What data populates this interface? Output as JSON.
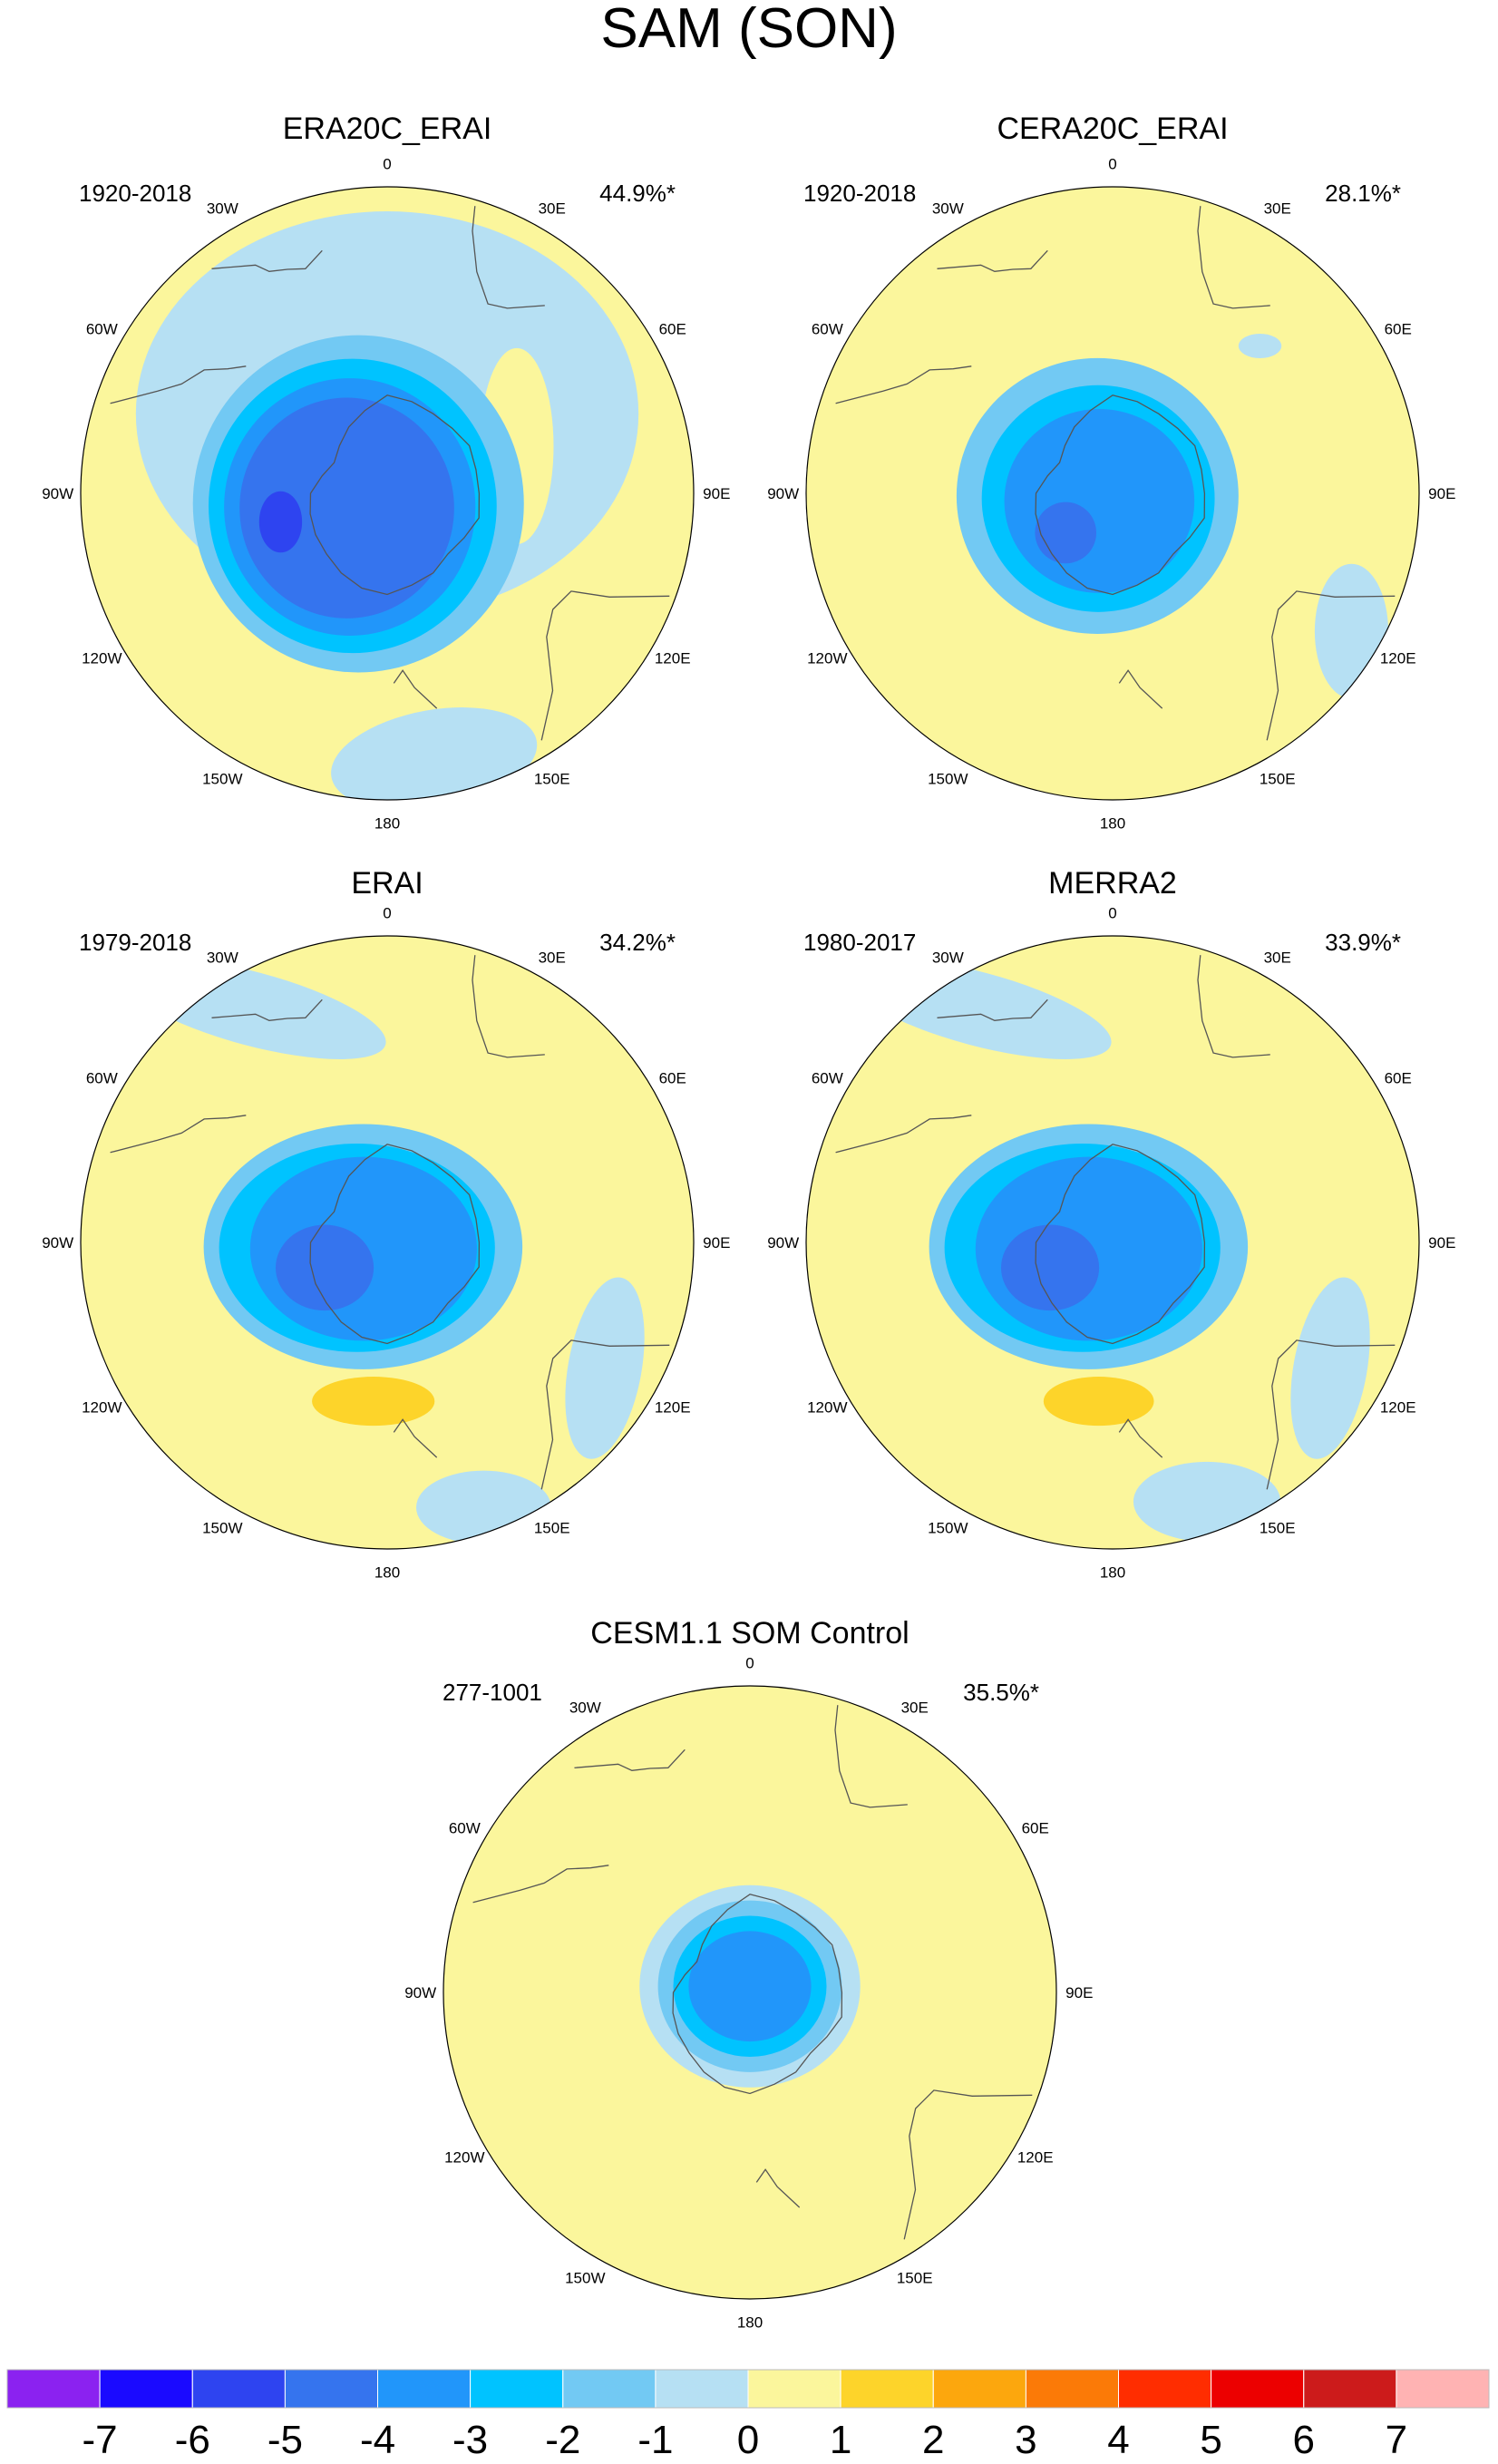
{
  "title": "SAM (SON)",
  "longitude_labels": [
    "0",
    "30E",
    "60E",
    "90E",
    "120E",
    "150E",
    "180",
    "150W",
    "120W",
    "90W",
    "60W",
    "30W"
  ],
  "panels": [
    {
      "id": "era20c",
      "title": "ERA20C_ERAI",
      "period": "1920-2018",
      "variance": "44.9%*",
      "blobs": [
        {
          "lon": 0,
          "r": 0.26,
          "rx": 0.82,
          "ry": 0.66,
          "rot": 0,
          "level": -1
        },
        {
          "lon": 45,
          "r": 0.62,
          "rx": 0.1,
          "ry": 0.18,
          "rot": 20,
          "level": -1
        },
        {
          "lon": 170,
          "r": 0.88,
          "rx": 0.34,
          "ry": 0.16,
          "rot": -10,
          "level": -1
        },
        {
          "lon": 70,
          "r": 0.45,
          "rx": 0.12,
          "ry": 0.32,
          "rot": 0,
          "level": 1
        },
        {
          "lon": 200,
          "r": 0.6,
          "rx": 0.22,
          "ry": 0.07,
          "rot": 0,
          "level": 1
        },
        {
          "lon": 250,
          "r": 0.1,
          "rx": 0.54,
          "ry": 0.55,
          "rot": 0,
          "level": -2
        },
        {
          "lon": 250,
          "r": 0.12,
          "rx": 0.47,
          "ry": 0.48,
          "rot": 0,
          "level": -3
        },
        {
          "lon": 250,
          "r": 0.13,
          "rx": 0.41,
          "ry": 0.42,
          "rot": 0,
          "level": -4
        },
        {
          "lon": 250,
          "r": 0.14,
          "rx": 0.35,
          "ry": 0.36,
          "rot": 0,
          "level": -5
        },
        {
          "lon": 255,
          "r": 0.36,
          "rx": 0.07,
          "ry": 0.1,
          "rot": 0,
          "level": -6
        }
      ]
    },
    {
      "id": "cera20c",
      "title": "CERA20C_ERAI",
      "period": "1920-2018",
      "variance": "28.1%*",
      "blobs": [
        {
          "lon": 120,
          "r": 0.9,
          "rx": 0.12,
          "ry": 0.22,
          "rot": 0,
          "level": -1
        },
        {
          "lon": 45,
          "r": 0.68,
          "rx": 0.07,
          "ry": 0.04,
          "rot": 0,
          "level": -1
        },
        {
          "lon": 90,
          "r": 0.55,
          "rx": 0.12,
          "ry": 0.38,
          "rot": 25,
          "level": 1
        },
        {
          "lon": 160,
          "r": 0.58,
          "rx": 0.38,
          "ry": 0.12,
          "rot": -18,
          "level": 1
        },
        {
          "lon": 260,
          "r": 0.05,
          "rx": 0.46,
          "ry": 0.45,
          "rot": 0,
          "level": -2
        },
        {
          "lon": 250,
          "r": 0.05,
          "rx": 0.38,
          "ry": 0.37,
          "rot": 0,
          "level": -3
        },
        {
          "lon": 240,
          "r": 0.05,
          "rx": 0.31,
          "ry": 0.3,
          "rot": 0,
          "level": -4
        },
        {
          "lon": 230,
          "r": 0.2,
          "rx": 0.1,
          "ry": 0.1,
          "rot": 0,
          "level": -5
        }
      ]
    },
    {
      "id": "erai",
      "title": "ERAI",
      "period": "1979-2018",
      "variance": "34.2%*",
      "blobs": [
        {
          "lon": 330,
          "r": 0.88,
          "rx": 0.45,
          "ry": 0.12,
          "rot": 15,
          "level": -1
        },
        {
          "lon": 120,
          "r": 0.82,
          "rx": 0.12,
          "ry": 0.3,
          "rot": 10,
          "level": -1
        },
        {
          "lon": 160,
          "r": 0.92,
          "rx": 0.22,
          "ry": 0.12,
          "rot": 0,
          "level": -1
        },
        {
          "lon": 300,
          "r": 0.55,
          "rx": 0.09,
          "ry": 0.06,
          "rot": 0,
          "level": 1
        },
        {
          "lon": 90,
          "r": 0.48,
          "rx": 0.12,
          "ry": 0.4,
          "rot": 25,
          "level": 1
        },
        {
          "lon": 170,
          "r": 0.52,
          "rx": 0.4,
          "ry": 0.15,
          "rot": -18,
          "level": 1
        },
        {
          "lon": 185,
          "r": 0.52,
          "rx": 0.2,
          "ry": 0.08,
          "rot": 0,
          "level": 2
        },
        {
          "lon": 260,
          "r": 0.08,
          "rx": 0.52,
          "ry": 0.4,
          "rot": 0,
          "level": -2
        },
        {
          "lon": 260,
          "r": 0.1,
          "rx": 0.45,
          "ry": 0.34,
          "rot": 0,
          "level": -3
        },
        {
          "lon": 255,
          "r": 0.08,
          "rx": 0.37,
          "ry": 0.3,
          "rot": 0,
          "level": -4
        },
        {
          "lon": 248,
          "r": 0.22,
          "rx": 0.16,
          "ry": 0.14,
          "rot": 0,
          "level": -5
        }
      ]
    },
    {
      "id": "merra2",
      "title": "MERRA2",
      "period": "1980-2017",
      "variance": "33.9%*",
      "blobs": [
        {
          "lon": 330,
          "r": 0.88,
          "rx": 0.45,
          "ry": 0.12,
          "rot": 15,
          "level": -1
        },
        {
          "lon": 120,
          "r": 0.82,
          "rx": 0.12,
          "ry": 0.3,
          "rot": 10,
          "level": -1
        },
        {
          "lon": 160,
          "r": 0.9,
          "rx": 0.24,
          "ry": 0.13,
          "rot": 0,
          "level": -1
        },
        {
          "lon": 300,
          "r": 0.55,
          "rx": 0.1,
          "ry": 0.07,
          "rot": 0,
          "level": 1
        },
        {
          "lon": 90,
          "r": 0.48,
          "rx": 0.12,
          "ry": 0.4,
          "rot": 25,
          "level": 1
        },
        {
          "lon": 170,
          "r": 0.52,
          "rx": 0.4,
          "ry": 0.15,
          "rot": -18,
          "level": 1
        },
        {
          "lon": 185,
          "r": 0.52,
          "rx": 0.18,
          "ry": 0.08,
          "rot": 0,
          "level": 2
        },
        {
          "lon": 260,
          "r": 0.08,
          "rx": 0.52,
          "ry": 0.4,
          "rot": 0,
          "level": -2
        },
        {
          "lon": 260,
          "r": 0.1,
          "rx": 0.45,
          "ry": 0.34,
          "rot": 0,
          "level": -3
        },
        {
          "lon": 255,
          "r": 0.08,
          "rx": 0.37,
          "ry": 0.3,
          "rot": 0,
          "level": -4
        },
        {
          "lon": 248,
          "r": 0.22,
          "rx": 0.16,
          "ry": 0.14,
          "rot": 0,
          "level": -5
        }
      ]
    },
    {
      "id": "cesm",
      "title": "CESM1.1 SOM Control",
      "period": "277-1001",
      "variance": "35.5%*",
      "blobs": [
        {
          "lon": 80,
          "r": 0.45,
          "rx": 0.14,
          "ry": 0.44,
          "rot": 20,
          "level": 1
        },
        {
          "lon": 165,
          "r": 0.5,
          "rx": 0.36,
          "ry": 0.13,
          "rot": -15,
          "level": 1
        },
        {
          "lon": 0,
          "r": 0.02,
          "rx": 0.36,
          "ry": 0.33,
          "rot": 0,
          "level": -1
        },
        {
          "lon": 0,
          "r": 0.02,
          "rx": 0.3,
          "ry": 0.28,
          "rot": 0,
          "level": -2
        },
        {
          "lon": 0,
          "r": 0.02,
          "rx": 0.25,
          "ry": 0.23,
          "rot": 0,
          "level": -3
        },
        {
          "lon": 0,
          "r": 0.02,
          "rx": 0.2,
          "ry": 0.18,
          "rot": 0,
          "level": -4
        }
      ]
    }
  ],
  "colorbar": {
    "labels": [
      "-7",
      "-6",
      "-5",
      "-4",
      "-3",
      "-2",
      "-1",
      "0",
      "1",
      "2",
      "3",
      "4",
      "5",
      "6",
      "7"
    ],
    "colors": [
      "#8b22f0",
      "#1a0aff",
      "#2e44f0",
      "#3574ee",
      "#2196fa",
      "#00c3ff",
      "#72c9f3",
      "#b6e0f3",
      "#fbf69c",
      "#fdd42a",
      "#fca70d",
      "#fb7a07",
      "#ff2d00",
      "#ec0000",
      "#cc1b1b",
      "#ffb3b3"
    ],
    "zero_level_color": "#fbf69c"
  }
}
